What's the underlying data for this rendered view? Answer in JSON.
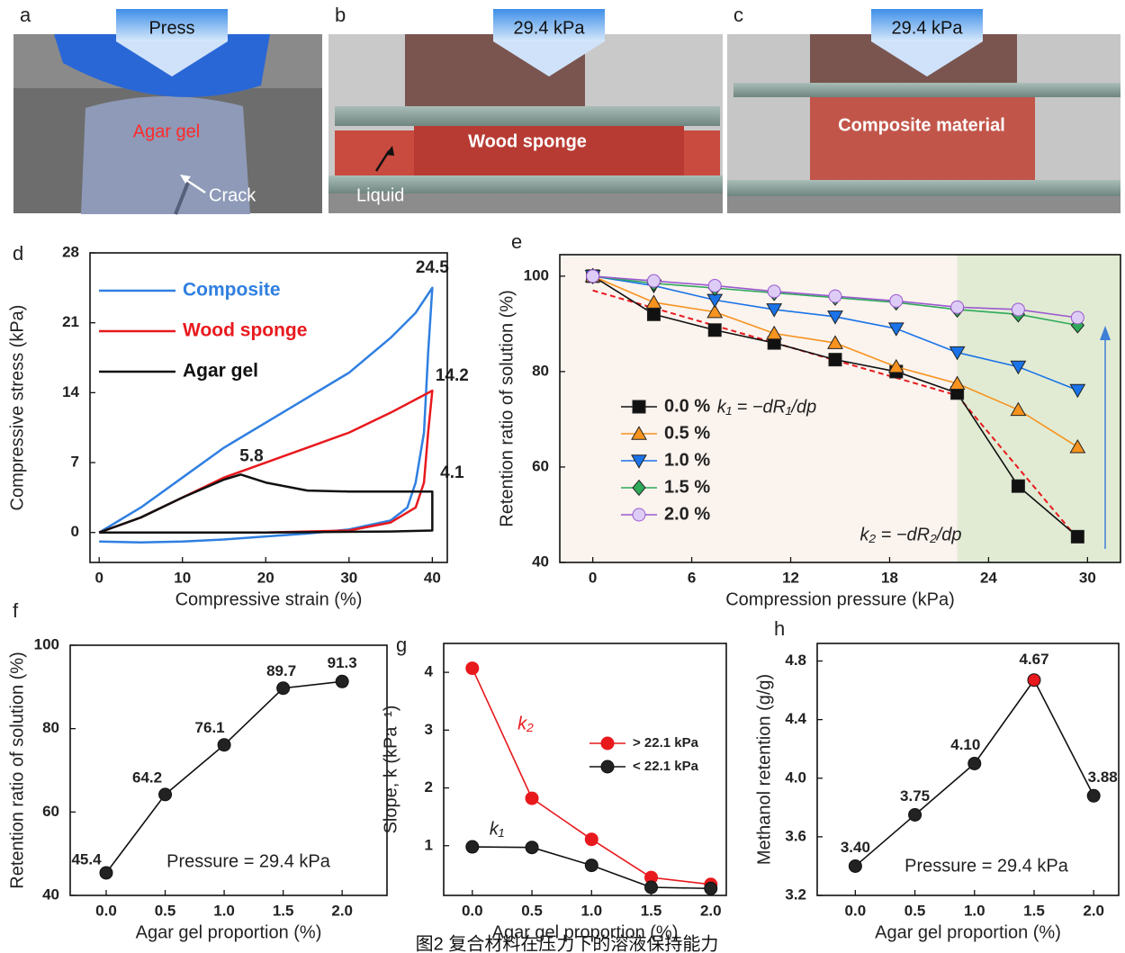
{
  "photos": [
    {
      "label": "a",
      "arrow": "Press",
      "texts": [
        "Agar gel",
        "Crack"
      ]
    },
    {
      "label": "b",
      "arrow": "29.4 kPa",
      "texts": [
        "Wood sponge",
        "Liquid"
      ]
    },
    {
      "label": "c",
      "arrow": "29.4 kPa",
      "texts": [
        "Composite material"
      ]
    }
  ],
  "caption": "图2 复合材料在压力下的溶液保持能力",
  "chart_data": [
    {
      "type": "line",
      "panel": "d",
      "xlabel": "Compressive strain (%)",
      "ylabel": "Compressive stress (kPa)",
      "xlim": [
        -1.1,
        41.8
      ],
      "ylim": [
        -3,
        28
      ],
      "xticks": [
        0,
        10,
        20,
        30,
        40
      ],
      "yticks": [
        0,
        7,
        14,
        21,
        28
      ],
      "legend": "upper left",
      "legend_colored_text": true,
      "series": [
        {
          "name": "Composite",
          "color": "#2f7fe0",
          "annotation": "24.5",
          "x": [
            0,
            5,
            10,
            15,
            20,
            25,
            30,
            35,
            38,
            40,
            39.5,
            39,
            38,
            37,
            35,
            30,
            25,
            20,
            15,
            10,
            5,
            0
          ],
          "values": [
            0,
            2.5,
            5.5,
            8.5,
            11,
            13.5,
            16,
            19.5,
            22,
            24.5,
            18,
            10,
            5,
            2.5,
            1.2,
            0.3,
            -0.1,
            -0.4,
            -0.7,
            -0.9,
            -1,
            -0.9
          ]
        },
        {
          "name": "Wood sponge",
          "color": "#e8191d",
          "annotation": "14.2",
          "x": [
            0,
            5,
            10,
            15,
            20,
            25,
            30,
            35,
            40,
            39.5,
            39,
            38,
            35,
            30,
            20,
            10,
            0
          ],
          "values": [
            0,
            1.5,
            3.5,
            5.5,
            7,
            8.5,
            10,
            12,
            14.2,
            10,
            5,
            2.5,
            1,
            0.2,
            0,
            0,
            0
          ]
        },
        {
          "name": "Agar gel",
          "color": "#111111",
          "annotation": "5.8",
          "x": [
            0,
            5,
            10,
            15,
            17,
            20,
            25,
            30,
            35,
            40,
            40,
            35,
            20,
            0
          ],
          "values": [
            0,
            1.5,
            3.5,
            5.3,
            5.8,
            5,
            4.2,
            4.1,
            4.1,
            4.1,
            0.2,
            0.1,
            0,
            0
          ]
        },
        {
          "name": null,
          "color": "#111111",
          "annotation": "4.1",
          "x": [
            40
          ],
          "values": [
            4.1
          ],
          "hidden": true
        }
      ]
    },
    {
      "type": "line",
      "panel": "e",
      "xlabel": "Compression pressure (kPa)",
      "ylabel": "Retention ratio of solution (%)",
      "xlim": [
        -2,
        32
      ],
      "ylim": [
        40,
        104.5
      ],
      "xticks": [
        0,
        6,
        12,
        18,
        24,
        30
      ],
      "yticks": [
        40,
        60,
        80,
        100
      ],
      "legend": "center left",
      "background": "#fbf3ee",
      "shade": {
        "from": 22.1,
        "color": "#e1ebd3"
      },
      "x": [
        0,
        3.7,
        7.4,
        11,
        14.7,
        18.4,
        22.1,
        25.8,
        29.4
      ],
      "series": [
        {
          "name": "0.0 %",
          "color": "#111111",
          "marker": "square",
          "values": [
            100,
            92,
            88.7,
            86,
            82.5,
            80,
            75.5,
            56,
            45.4
          ]
        },
        {
          "name": "0.5 %",
          "color": "#f7931e",
          "marker": "triangle",
          "values": [
            100,
            94.5,
            92.5,
            88,
            86,
            81,
            77.5,
            72,
            64.2
          ]
        },
        {
          "name": "1.0 %",
          "color": "#1a73e8",
          "marker": "triangle-down",
          "values": [
            100,
            98,
            95,
            93,
            91.5,
            89,
            84,
            81,
            76.1
          ]
        },
        {
          "name": "1.5 %",
          "color": "#2eaa5a",
          "marker": "diamond",
          "values": [
            100,
            98.5,
            97.5,
            96.5,
            95.5,
            94.5,
            93,
            92,
            89.7
          ]
        },
        {
          "name": "2.0 %",
          "color": "#9b59d0",
          "marker": "circle",
          "values": [
            100,
            99,
            98,
            96.8,
            95.8,
            94.8,
            93.5,
            93,
            91.3
          ]
        }
      ],
      "fit_lines": [
        {
          "color": "#e8191d",
          "x": [
            0,
            22.1
          ],
          "values": [
            97,
            75
          ]
        },
        {
          "color": "#e8191d",
          "x": [
            22.1,
            29.4
          ],
          "values": [
            75,
            45
          ]
        }
      ],
      "annotations": [
        {
          "text": "k₁ = −dR₁/dp",
          "color": "#222222"
        },
        {
          "text": "k₂ = −dR₂/dp",
          "color": "#222222"
        }
      ]
    },
    {
      "type": "line",
      "panel": "f",
      "xlabel": "Agar gel proportion (%)",
      "ylabel": "Retention ratio of solution (%)",
      "xlim": [
        -0.305,
        2.38
      ],
      "ylim": [
        40,
        100
      ],
      "xticks": [
        {
          "value": 0,
          "label": "0.0"
        },
        {
          "value": 0.5,
          "label": "0.5"
        },
        {
          "value": 1,
          "label": "1.0"
        },
        {
          "value": 1.5,
          "label": "1.5"
        },
        {
          "value": 2,
          "label": "2.0"
        }
      ],
      "yticks": [
        40,
        60,
        80,
        100
      ],
      "x": [
        0,
        0.5,
        1,
        1.5,
        2
      ],
      "series": [
        {
          "name": null,
          "color": "#111111",
          "marker": "circle",
          "fill": "#222222",
          "values": [
            45.4,
            64.2,
            76.1,
            89.7,
            91.3
          ],
          "show_values": true
        }
      ],
      "annotations": [
        {
          "text": "Pressure = 29.4 kPa",
          "color": "#222222"
        }
      ]
    },
    {
      "type": "line",
      "panel": "g",
      "xlabel": "Agar gel proportion (%)",
      "ylabel": "Slope, k (kPa⁻¹)",
      "xlim": [
        -0.24,
        2.13
      ],
      "ylim": [
        0.14,
        4.5
      ],
      "xticks": [
        {
          "value": 0,
          "label": "0.0"
        },
        {
          "value": 0.5,
          "label": "0.5"
        },
        {
          "value": 1,
          "label": "1.0"
        },
        {
          "value": 1.5,
          "label": "1.5"
        },
        {
          "value": 2,
          "label": "2.0"
        }
      ],
      "yticks": [
        1,
        2,
        3,
        4
      ],
      "x": [
        0,
        0.5,
        1,
        1.5,
        2
      ],
      "legend": "center right",
      "series": [
        {
          "name": "> 22.1 kPa",
          "color": "#e8191d",
          "marker": "circle",
          "fill": "#e8191d",
          "values": [
            4.07,
            1.82,
            1.11,
            0.45,
            0.33
          ]
        },
        {
          "name": "< 22.1 kPa",
          "color": "#111111",
          "marker": "circle",
          "fill": "#222222",
          "values": [
            0.98,
            0.97,
            0.66,
            0.28,
            0.26
          ]
        }
      ],
      "annotations": [
        {
          "text": "k₂",
          "color": "#e8191d"
        },
        {
          "text": "k₁",
          "color": "#222222"
        }
      ]
    },
    {
      "type": "line",
      "panel": "h",
      "xlabel": "Agar gel proportion (%)",
      "ylabel": "Methanol retention (g/g)",
      "xlim": [
        -0.32,
        2.21
      ],
      "ylim": [
        3.2,
        4.92
      ],
      "xticks": [
        {
          "value": 0,
          "label": "0.0"
        },
        {
          "value": 0.5,
          "label": "0.5"
        },
        {
          "value": 1,
          "label": "1.0"
        },
        {
          "value": 1.5,
          "label": "1.5"
        },
        {
          "value": 2,
          "label": "2.0"
        }
      ],
      "yticks": [
        3.2,
        3.6,
        {
          "value": 4,
          "label": "4.0"
        },
        4.4,
        4.8
      ],
      "x": [
        0,
        0.5,
        1,
        1.5,
        2
      ],
      "series": [
        {
          "name": null,
          "color": "#111111",
          "marker": "circle",
          "point_colors": [
            "#222222",
            "#222222",
            "#222222",
            "#e8191d",
            "#222222"
          ],
          "values": [
            3.4,
            3.75,
            4.1,
            4.67,
            3.88
          ],
          "value_labels": [
            "3.40",
            "3.75",
            "4.10",
            "4.67",
            "3.88"
          ],
          "show_values": true
        }
      ],
      "annotations": [
        {
          "text": "Pressure = 29.4 kPa",
          "color": "#222222"
        }
      ]
    }
  ]
}
